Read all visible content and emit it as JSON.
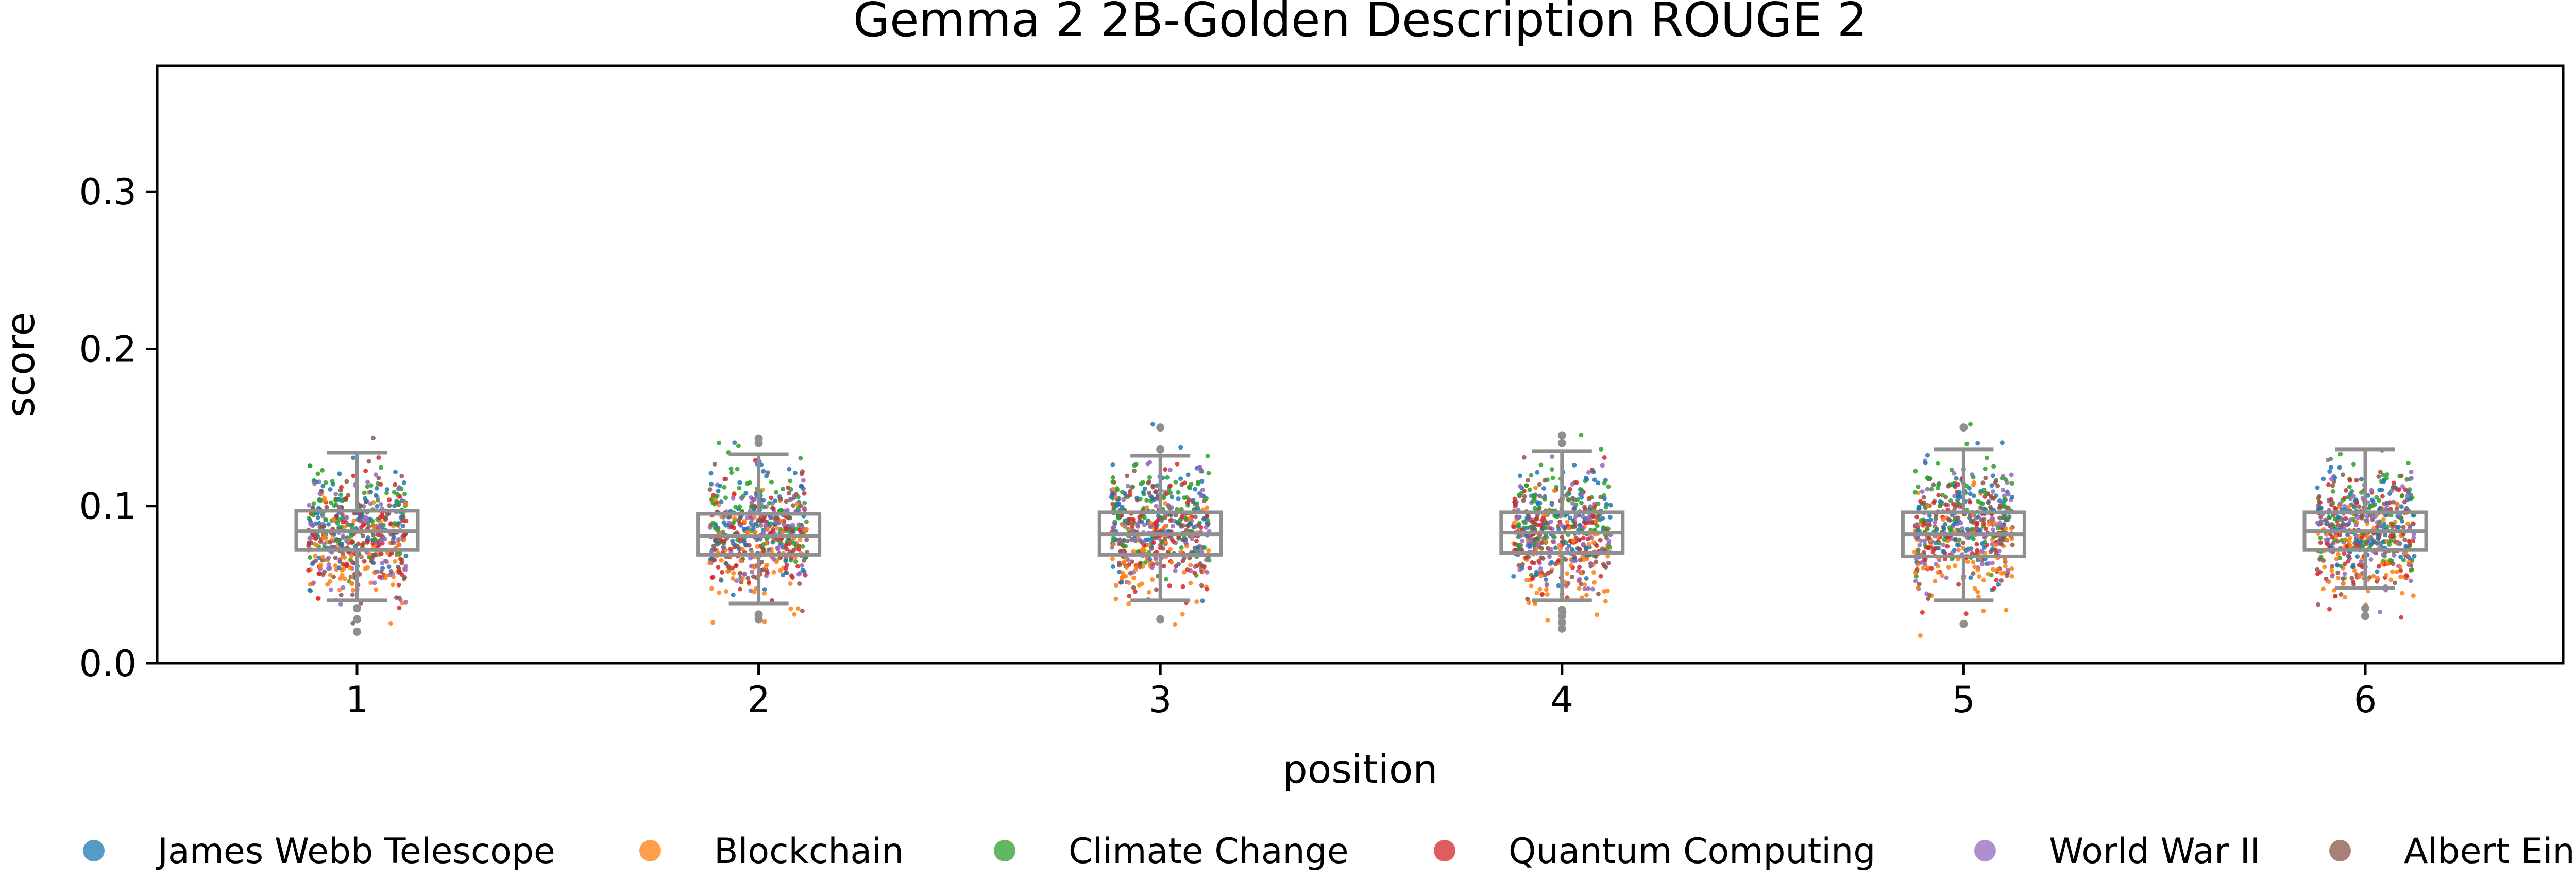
{
  "chart_data": {
    "type": "scatter",
    "subtype": "strip-with-boxplot",
    "title": "Gemma 2 2B-Golden Description ROUGE 2",
    "xlabel": "position",
    "ylabel": "score",
    "ylim": [
      0,
      0.38
    ],
    "yticks": [
      0.0,
      0.1,
      0.2,
      0.3
    ],
    "ytick_labels": [
      "0.0",
      "0.1",
      "0.2",
      "0.3"
    ],
    "categories": [
      "1",
      "2",
      "3",
      "4",
      "5",
      "6"
    ],
    "grid": false,
    "legend_position": "bottom",
    "series": [
      {
        "name": "James Webb Telescope",
        "color": "#1f77b4",
        "center": 0.09
      },
      {
        "name": "Blockchain",
        "color": "#ff7f0e",
        "center": 0.07
      },
      {
        "name": "Climate Change",
        "color": "#2ca02c",
        "center": 0.095
      },
      {
        "name": "Quantum Computing",
        "color": "#d62728",
        "center": 0.082
      },
      {
        "name": "World War II",
        "color": "#9467bd",
        "center": 0.085
      },
      {
        "name": "Albert Einstein",
        "color": "#8c564b",
        "center": 0.082
      }
    ],
    "boxplots": [
      {
        "position": "1",
        "whisker_low": 0.04,
        "q1": 0.072,
        "median": 0.084,
        "q3": 0.097,
        "whisker_high": 0.134,
        "outliers": [
          0.02,
          0.028,
          0.035
        ]
      },
      {
        "position": "2",
        "whisker_low": 0.038,
        "q1": 0.069,
        "median": 0.081,
        "q3": 0.095,
        "whisker_high": 0.133,
        "outliers": [
          0.028,
          0.031,
          0.14,
          0.143
        ]
      },
      {
        "position": "3",
        "whisker_low": 0.04,
        "q1": 0.069,
        "median": 0.082,
        "q3": 0.096,
        "whisker_high": 0.132,
        "outliers": [
          0.028,
          0.136,
          0.15
        ]
      },
      {
        "position": "4",
        "whisker_low": 0.04,
        "q1": 0.07,
        "median": 0.083,
        "q3": 0.096,
        "whisker_high": 0.135,
        "outliers": [
          0.022,
          0.026,
          0.03,
          0.034,
          0.14,
          0.145
        ]
      },
      {
        "position": "5",
        "whisker_low": 0.04,
        "q1": 0.068,
        "median": 0.082,
        "q3": 0.096,
        "whisker_high": 0.136,
        "outliers": [
          0.025,
          0.15
        ]
      },
      {
        "position": "6",
        "whisker_low": 0.048,
        "q1": 0.072,
        "median": 0.084,
        "q3": 0.096,
        "whisker_high": 0.136,
        "outliers": [
          0.03,
          0.035
        ]
      }
    ],
    "points_per_series_per_position": 90,
    "point_spread": 0.018
  }
}
